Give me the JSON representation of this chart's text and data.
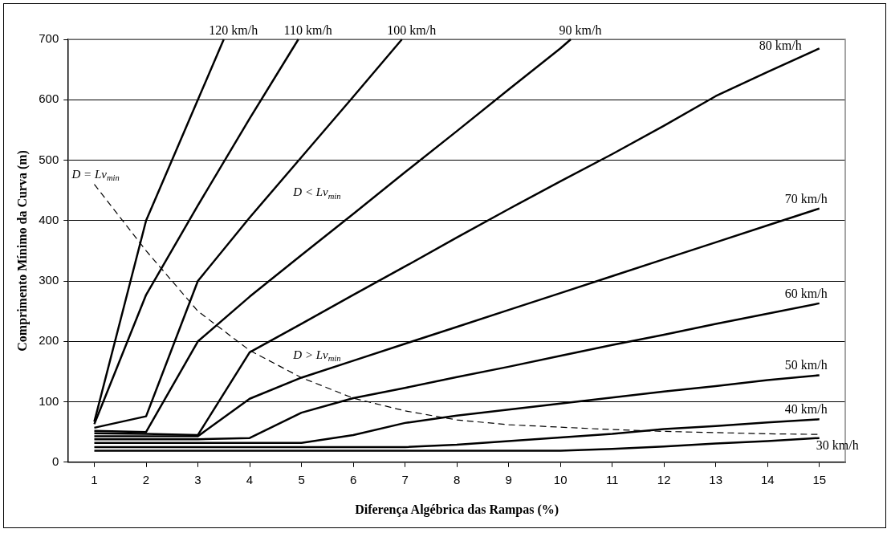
{
  "chart_data": {
    "type": "line",
    "xlabel": "Diferença Algébrica das Rampas (%)",
    "ylabel": "Comprimento Mínimo da Curva (m)",
    "xlim": [
      0.5,
      15.5
    ],
    "xticks": [
      1,
      2,
      3,
      4,
      5,
      6,
      7,
      8,
      9,
      10,
      11,
      12,
      13,
      14,
      15
    ],
    "ylim": [
      0,
      700
    ],
    "yticks": [
      0,
      100,
      200,
      300,
      400,
      500,
      600,
      700
    ],
    "grid": "y",
    "legend": false,
    "marker": "none",
    "line_style": "solid",
    "series": [
      {
        "name": "120 km/h",
        "color": "#000000",
        "x": [
          1,
          2,
          3,
          3.5
        ],
        "values": [
          67,
          400,
          600,
          700
        ]
      },
      {
        "name": "110 km/h",
        "color": "#000000",
        "x": [
          1,
          2,
          3,
          4,
          4.94
        ],
        "values": [
          63,
          277,
          425,
          569,
          700
        ]
      },
      {
        "name": "100 km/h",
        "color": "#000000",
        "x": [
          1,
          2,
          3,
          4,
          5,
          6,
          6.94
        ],
        "values": [
          57,
          76,
          300,
          405,
          505,
          605,
          700
        ]
      },
      {
        "name": "90 km/h",
        "color": "#000000",
        "x": [
          1,
          2,
          3,
          4,
          5,
          6,
          7,
          8,
          9,
          10,
          10.2
        ],
        "values": [
          52,
          50,
          200,
          274,
          343,
          411,
          480,
          548,
          617,
          685,
          700
        ]
      },
      {
        "name": "80 km/h",
        "color": "#000000",
        "x": [
          1,
          2,
          3,
          4,
          5,
          6,
          7,
          8,
          9,
          10,
          11,
          12,
          13,
          14,
          15
        ],
        "values": [
          48,
          47,
          45,
          182,
          229,
          277,
          324,
          372,
          419,
          465,
          510,
          557,
          606,
          646,
          685
        ]
      },
      {
        "name": "70 km/h",
        "color": "#000000",
        "x": [
          1,
          2,
          3,
          4,
          5,
          6,
          7,
          8,
          9,
          10,
          11,
          12,
          13,
          14,
          15
        ],
        "values": [
          43,
          43,
          43,
          105,
          140,
          168,
          196,
          224,
          252,
          280,
          308,
          336,
          364,
          392,
          420
        ]
      },
      {
        "name": "60 km/h",
        "color": "#000000",
        "x": [
          1,
          2,
          3,
          4,
          5,
          6,
          7,
          8,
          9,
          10,
          11,
          12,
          13,
          14,
          15
        ],
        "values": [
          38,
          38,
          38,
          40,
          82,
          106,
          123,
          141,
          158,
          176,
          194,
          211,
          229,
          246,
          263
        ]
      },
      {
        "name": "50 km/h",
        "color": "#000000",
        "x": [
          1,
          2,
          3,
          4,
          5,
          6,
          7,
          8,
          9,
          10,
          11,
          12,
          13,
          14,
          15
        ],
        "values": [
          32,
          32,
          32,
          32,
          32,
          45,
          65,
          77,
          87,
          97,
          107,
          117,
          126,
          136,
          144
        ]
      },
      {
        "name": "40 km/h",
        "color": "#000000",
        "x": [
          1,
          2,
          3,
          4,
          5,
          6,
          7,
          8,
          9,
          10,
          11,
          12,
          13,
          14,
          15
        ],
        "values": [
          25,
          25,
          25,
          25,
          25,
          25,
          25,
          29,
          35,
          41,
          47,
          55,
          60,
          66,
          71
        ]
      },
      {
        "name": "30 km/h",
        "color": "#000000",
        "x": [
          1,
          2,
          3,
          4,
          5,
          6,
          7,
          8,
          9,
          10,
          11,
          12,
          13,
          14,
          15
        ],
        "values": [
          19,
          19,
          19,
          19,
          19,
          19,
          19,
          19,
          19,
          19,
          22,
          26,
          31,
          35,
          40
        ]
      },
      {
        "name": "D = Lv$_{min}$",
        "color": "#000000",
        "line_style": "dashed",
        "x": [
          1,
          2,
          3,
          4,
          5,
          6,
          7,
          8,
          9,
          10,
          11,
          12,
          13,
          14,
          15
        ],
        "values": [
          460,
          350,
          250,
          185,
          140,
          106,
          85,
          70,
          62,
          58,
          54,
          51,
          49,
          47,
          46
        ]
      }
    ],
    "annotations": [
      "D < Lv$_{min}$",
      "D > Lv$_{min}$"
    ]
  }
}
